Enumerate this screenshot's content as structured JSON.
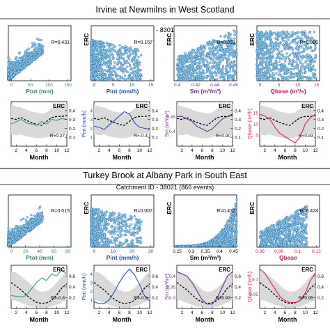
{
  "figure": {
    "sections": [
      {
        "title": "Irvine at Newmilns in West Scotland",
        "catchment_label": "Catchment ID - 83010 (877 events)",
        "scatter_ylabel": "ERC",
        "seasonal_ylabel": "ERC",
        "month_label": "Month",
        "scatter_panels": [
          {
            "xlabel": "Ptot (mm)",
            "r_label": "R=0.431",
            "xticks": [
              "0",
              "50",
              "100",
              "150"
            ],
            "xlim": [
              0,
              150
            ],
            "xlabel_color": "#2e8b57",
            "n_points": 750,
            "dist": "ptot"
          },
          {
            "xlabel": "Pint (mm/h)",
            "r_label": "R=0.157",
            "xticks": [
              "0",
              "5",
              "10",
              "15"
            ],
            "xlim": [
              0,
              15
            ],
            "xlabel_color": "#1f4fb0",
            "n_points": 750,
            "dist": "pint"
          },
          {
            "xlabel": "Sm (m³/m³)",
            "r_label": "R=0.031",
            "xticks": [
              "0.4",
              "0.42",
              "0.44",
              "0.46"
            ],
            "xlim": [
              0.39,
              0.47
            ],
            "xlabel_color": "#6a2c91",
            "n_points": 650,
            "dist": "sm_uniform"
          },
          {
            "xlabel": "Qbase (m³/s)",
            "r_label": "R=0.026",
            "xticks": [
              "0",
              "5",
              "10",
              "15"
            ],
            "xlim": [
              0,
              15
            ],
            "xlabel_color": "#c2185b",
            "n_points": 750,
            "dist": "qbase"
          }
        ],
        "seasonal_panels": [
          {
            "ylabel": "",
            "right_ticks": [
              "0.1",
              "0.2",
              "0.3",
              "0.4"
            ],
            "r_label": "R=0.27",
            "corner_label": "ERC",
            "line_color": "#2a9d8f",
            "var_values": [
              0.5,
              0.55,
              0.6,
              0.52,
              0.5,
              0.47,
              0.55,
              0.5,
              0.6,
              0.58,
              0.62,
              0.6
            ],
            "var_range": [
              0,
              1
            ]
          },
          {
            "ylabel": "Pint (mm/h)",
            "left_ticks": [
              "1",
              "2",
              "3",
              "4"
            ],
            "right_ticks": [
              "0.1",
              "0.2",
              "0.3",
              "0.4"
            ],
            "r_label": "R=-0.4",
            "corner_label": "ERC",
            "line_color": "#1f4fb0",
            "var_values": [
              2.3,
              2.2,
              2.0,
              2.4,
              2.8,
              3.2,
              3.6,
              3.4,
              2.6,
              2.2,
              2.1,
              2.0
            ],
            "var_range": [
              0.5,
              4.5
            ]
          },
          {
            "ylabel": "Sm (m³/m³)",
            "left_ticks": [
              "0.4",
              "0.45"
            ],
            "right_ticks": [
              "0.1",
              "0.2",
              "0.3",
              "0.4"
            ],
            "r_label": "R=0.90",
            "corner_label": "ERC",
            "line_color": "#6a2c91",
            "var_values": [
              0.44,
              0.44,
              0.435,
              0.43,
              0.42,
              0.415,
              0.41,
              0.415,
              0.425,
              0.435,
              0.44,
              0.445
            ],
            "var_range": [
              0.38,
              0.47
            ]
          },
          {
            "ylabel": "Qbase (m³/h)",
            "left_ticks": [
              "5",
              "10",
              "15"
            ],
            "right_ticks": [
              "0.1",
              "0.2",
              "0.3",
              "0.4"
            ],
            "r_label": "R=0.83",
            "corner_label": "ERC",
            "line_color": "#d81b60",
            "var_values": [
              12,
              11.5,
              10.5,
              8,
              6,
              5,
              4,
              3,
              5,
              9,
              11,
              12
            ],
            "var_range": [
              2,
              16
            ]
          }
        ],
        "erc_mean": [
          0.28,
          0.27,
          0.29,
          0.26,
          0.24,
          0.22,
          0.21,
          0.25,
          0.29,
          0.3,
          0.3,
          0.31
        ],
        "band_upper": [
          0.42,
          0.4,
          0.39,
          0.37,
          0.35,
          0.34,
          0.33,
          0.34,
          0.38,
          0.4,
          0.42,
          0.43
        ],
        "band_lower": [
          0.12,
          0.11,
          0.12,
          0.1,
          0.09,
          0.08,
          0.08,
          0.09,
          0.11,
          0.12,
          0.13,
          0.12
        ]
      },
      {
        "title": "Turkey Brook at Albany Park in South East",
        "catchment_label": "Catchment ID - 38021 (866 events)",
        "scatter_ylabel": "ERC",
        "seasonal_ylabel": "ERC",
        "month_label": "Month",
        "scatter_panels": [
          {
            "xlabel": "Ptot (mm)",
            "r_label": "R=0.015",
            "xticks": [
              "0",
              "20",
              "40",
              "60",
              "80"
            ],
            "xlim": [
              0,
              80
            ],
            "xlabel_color": "#2e8b57",
            "n_points": 650,
            "dist": "ptot"
          },
          {
            "xlabel": "Pint (mm/h)",
            "r_label": "R=0.007",
            "xticks": [
              "0",
              "10",
              "20",
              "30"
            ],
            "xlim": [
              0,
              35
            ],
            "xlabel_color": "#1f4fb0",
            "n_points": 650,
            "dist": "pint"
          },
          {
            "xlabel": "Sm (m³/m³)",
            "r_label": "R=0.432",
            "xticks": [
              "0.25",
              "0.3",
              "0.35",
              "0.4",
              "0.45"
            ],
            "xlim": [
              0.24,
              0.46
            ],
            "xlabel_color": "#000000",
            "n_points": 700,
            "dist": "sm_exp"
          },
          {
            "xlabel": "Qbase",
            "r_label": "R=0.424",
            "xticks": [
              "0.06",
              "0.08",
              "0.1",
              "0.12"
            ],
            "xlim": [
              0.05,
              0.13
            ],
            "xlabel_color": "#c2185b",
            "n_points": 650,
            "dist": "qbase2"
          }
        ],
        "seasonal_panels": [
          {
            "ylabel": "",
            "right_ticks": [
              "0.2",
              "0.4",
              "0.6"
            ],
            "r_label": "R=-0.8",
            "corner_label": "ERC",
            "line_color": "#2a9d8f",
            "var_values": [
              0.3,
              0.28,
              0.27,
              0.3,
              0.45,
              0.6,
              0.7,
              0.65,
              0.8,
              0.75,
              0.9,
              0.8
            ],
            "var_range": [
              0,
              1
            ]
          },
          {
            "ylabel": "Pint (mm/h)",
            "left_ticks": [
              "1",
              "2",
              "3",
              "4"
            ],
            "right_ticks": [
              "0.2",
              "0.4",
              "0.6"
            ],
            "r_label": "R=-0.9",
            "corner_label": "ERC",
            "line_color": "#1f4fb0",
            "var_values": [
              1.2,
              1.0,
              1.0,
              1.4,
              2.2,
              3.2,
              4.0,
              4.6,
              4.0,
              3.0,
              1.8,
              1.3
            ],
            "var_range": [
              0.5,
              5
            ]
          },
          {
            "ylabel": "Sm (m³/m³)",
            "left_ticks": [
              "0.3",
              "0.35",
              "0.4"
            ],
            "right_ticks": [
              "0.2",
              "0.4",
              "0.6"
            ],
            "r_label": "R=0.93",
            "corner_label": "ERC",
            "line_color": "#6a2c91",
            "var_values": [
              0.42,
              0.41,
              0.4,
              0.37,
              0.33,
              0.29,
              0.27,
              0.27,
              0.3,
              0.35,
              0.4,
              0.42
            ],
            "var_range": [
              0.25,
              0.45
            ]
          },
          {
            "ylabel": "Qbase (m³/h)",
            "left_ticks": [
              "0.05",
              "0.1"
            ],
            "right_ticks": [
              "0.2",
              "0.4",
              "0.6"
            ],
            "r_label": "R=0.95",
            "corner_label": "ERC",
            "line_color": "#d81b60",
            "var_values": [
              0.13,
              0.12,
              0.1,
              0.08,
              0.06,
              0.05,
              0.045,
              0.045,
              0.05,
              0.07,
              0.1,
              0.12
            ],
            "var_range": [
              0.03,
              0.14
            ]
          }
        ],
        "erc_mean": [
          0.42,
          0.36,
          0.3,
          0.22,
          0.15,
          0.1,
          0.08,
          0.09,
          0.13,
          0.22,
          0.33,
          0.4
        ],
        "band_upper": [
          0.6,
          0.58,
          0.52,
          0.45,
          0.38,
          0.3,
          0.27,
          0.28,
          0.33,
          0.42,
          0.52,
          0.6
        ],
        "band_lower": [
          0.15,
          0.12,
          0.09,
          0.06,
          0.03,
          0.02,
          0.01,
          0.02,
          0.03,
          0.06,
          0.1,
          0.14
        ]
      }
    ],
    "month_ticks": [
      "2",
      "4",
      "6",
      "8",
      "10",
      "12"
    ],
    "colors": {
      "scatter_fill": "#8fd3e6",
      "scatter_stroke": "#1e4fa0",
      "band_fill": "#d9d9d9",
      "mean_line": "#000000"
    }
  },
  "chart_data": [
    {
      "type": "scatter",
      "title": "Irvine at Newmilns in West Scotland",
      "subtitle": "Catchment ID - 83010 (877 events)",
      "xlabel": "Ptot (mm)",
      "ylabel": "ERC",
      "annotation": "R=0.431",
      "xlim": [
        0,
        150
      ]
    },
    {
      "type": "scatter",
      "xlabel": "Pint (mm/h)",
      "ylabel": "ERC",
      "annotation": "R=0.157",
      "xlim": [
        0,
        15
      ]
    },
    {
      "type": "scatter",
      "xlabel": "Sm (m³/m³)",
      "ylabel": "ERC",
      "annotation": "R=0.031",
      "xlim": [
        0.39,
        0.47
      ]
    },
    {
      "type": "scatter",
      "xlabel": "Qbase (m³/s)",
      "ylabel": "ERC",
      "annotation": "R=0.026",
      "xlim": [
        0,
        15
      ]
    },
    {
      "type": "line",
      "xlabel": "Month",
      "ylabel": "ERC",
      "x": [
        1,
        2,
        3,
        4,
        5,
        6,
        7,
        8,
        9,
        10,
        11,
        12
      ],
      "series": [
        {
          "values": [
            0.28,
            0.27,
            0.29,
            0.26,
            0.24,
            0.22,
            0.21,
            0.25,
            0.29,
            0.3,
            0.3,
            0.31
          ]
        }
      ],
      "annotation": "R=0.27"
    },
    {
      "type": "line",
      "xlabel": "Month",
      "ylabel": "Pint (mm/h)",
      "x": [
        1,
        2,
        3,
        4,
        5,
        6,
        7,
        8,
        9,
        10,
        11,
        12
      ],
      "series": [
        {
          "values": [
            2.3,
            2.2,
            2.0,
            2.4,
            2.8,
            3.2,
            3.6,
            3.4,
            2.6,
            2.2,
            2.1,
            2.0
          ]
        }
      ],
      "annotation": "R=-0.4"
    },
    {
      "type": "line",
      "xlabel": "Month",
      "ylabel": "Sm (m³/m³)",
      "x": [
        1,
        2,
        3,
        4,
        5,
        6,
        7,
        8,
        9,
        10,
        11,
        12
      ],
      "series": [
        {
          "values": [
            0.44,
            0.44,
            0.435,
            0.43,
            0.42,
            0.415,
            0.41,
            0.415,
            0.425,
            0.435,
            0.44,
            0.445
          ]
        }
      ],
      "annotation": "R=0.90"
    },
    {
      "type": "line",
      "xlabel": "Month",
      "ylabel": "Qbase (m³/h)",
      "x": [
        1,
        2,
        3,
        4,
        5,
        6,
        7,
        8,
        9,
        10,
        11,
        12
      ],
      "series": [
        {
          "values": [
            12,
            11.5,
            10.5,
            8,
            6,
            5,
            4,
            3,
            5,
            9,
            11,
            12
          ]
        }
      ],
      "annotation": "R=0.83"
    },
    {
      "type": "scatter",
      "title": "Turkey Brook at Albany Park in South East",
      "subtitle": "Catchment ID - 38021 (866 events)",
      "xlabel": "Ptot (mm)",
      "ylabel": "ERC",
      "annotation": "R=0.015",
      "xlim": [
        0,
        80
      ]
    },
    {
      "type": "scatter",
      "xlabel": "Pint (mm/h)",
      "ylabel": "ERC",
      "annotation": "R=0.007",
      "xlim": [
        0,
        35
      ]
    },
    {
      "type": "scatter",
      "xlabel": "Sm (m³/m³)",
      "ylabel": "ERC",
      "annotation": "R=0.432",
      "xlim": [
        0.24,
        0.46
      ]
    },
    {
      "type": "scatter",
      "xlabel": "Qbase",
      "ylabel": "ERC",
      "annotation": "R=0.424",
      "xlim": [
        0.05,
        0.13
      ]
    },
    {
      "type": "line",
      "xlabel": "Month",
      "ylabel": "ERC",
      "x": [
        1,
        2,
        3,
        4,
        5,
        6,
        7,
        8,
        9,
        10,
        11,
        12
      ],
      "series": [
        {
          "values": [
            0.42,
            0.36,
            0.3,
            0.22,
            0.15,
            0.1,
            0.08,
            0.09,
            0.13,
            0.22,
            0.33,
            0.4
          ]
        }
      ],
      "annotation": "R=-0.8"
    },
    {
      "type": "line",
      "xlabel": "Month",
      "ylabel": "Pint (mm/h)",
      "x": [
        1,
        2,
        3,
        4,
        5,
        6,
        7,
        8,
        9,
        10,
        11,
        12
      ],
      "series": [
        {
          "values": [
            1.2,
            1.0,
            1.0,
            1.4,
            2.2,
            3.2,
            4.0,
            4.6,
            4.0,
            3.0,
            1.8,
            1.3
          ]
        }
      ],
      "annotation": "R=-0.9"
    },
    {
      "type": "line",
      "xlabel": "Month",
      "ylabel": "Sm (m³/m³)",
      "x": [
        1,
        2,
        3,
        4,
        5,
        6,
        7,
        8,
        9,
        10,
        11,
        12
      ],
      "series": [
        {
          "values": [
            0.42,
            0.41,
            0.4,
            0.37,
            0.33,
            0.29,
            0.27,
            0.27,
            0.3,
            0.35,
            0.4,
            0.42
          ]
        }
      ],
      "annotation": "R=0.93"
    },
    {
      "type": "line",
      "xlabel": "Month",
      "ylabel": "Qbase (m³/h)",
      "x": [
        1,
        2,
        3,
        4,
        5,
        6,
        7,
        8,
        9,
        10,
        11,
        12
      ],
      "series": [
        {
          "values": [
            0.13,
            0.12,
            0.1,
            0.08,
            0.06,
            0.05,
            0.045,
            0.045,
            0.05,
            0.07,
            0.1,
            0.12
          ]
        }
      ],
      "annotation": "R=0.95"
    }
  ]
}
